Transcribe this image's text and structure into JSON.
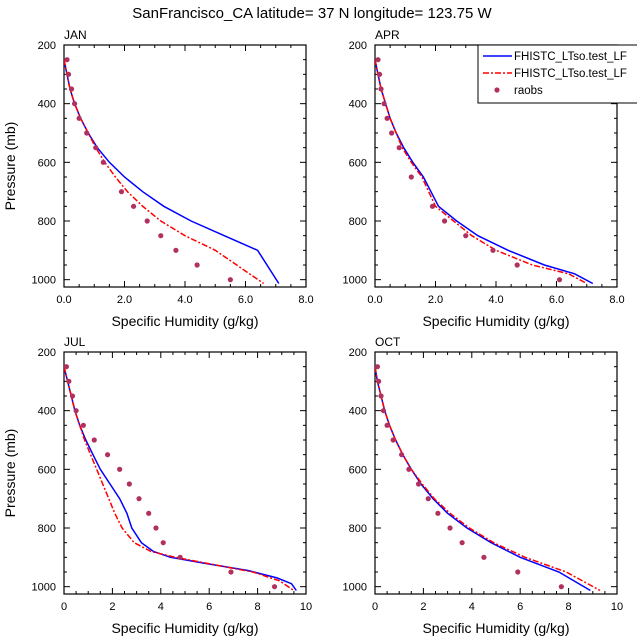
{
  "figure": {
    "title": "SanFrancisco_CA  latitude= 37 N longitude= 123.75 W"
  },
  "colors": {
    "model1": "#0000ff",
    "model2": "#ff0000",
    "obs": "#b03060",
    "axis": "#000000"
  },
  "legend": {
    "placement": "top-right of APR panel",
    "entries": [
      {
        "label": "FHISTC_LTso.test_LF",
        "style": "solid",
        "color": "#0000ff"
      },
      {
        "label": "FHISTC_LTso.test_LF",
        "style": "dashed",
        "color": "#ff0000"
      },
      {
        "label": "raobs",
        "style": "markers",
        "color": "#b03060"
      }
    ]
  },
  "chart_data": [
    {
      "type": "line",
      "panel_label": "JAN",
      "xlabel": "Specific Humidity (g/kg)",
      "ylabel": "Pressure (mb)",
      "xlim": [
        0,
        8
      ],
      "ylim": [
        1025,
        200
      ],
      "y_reversed": true,
      "xticks": [
        "0.0",
        "2.0",
        "4.0",
        "6.0",
        "8.0"
      ],
      "yticks": [
        "200",
        "400",
        "600",
        "800",
        "1000"
      ],
      "series": [
        {
          "name": "FHISTC_LTso.test_LF",
          "style": "solid",
          "x": [
            0.0,
            0.1,
            0.2,
            0.35,
            0.55,
            0.8,
            1.1,
            1.5,
            2.0,
            2.6,
            3.3,
            4.2,
            5.3,
            6.4,
            7.1
          ],
          "y": [
            250,
            300,
            350,
            400,
            450,
            500,
            550,
            600,
            650,
            700,
            750,
            800,
            850,
            900,
            1013
          ]
        },
        {
          "name": "FHISTC_LTso.test_LF",
          "style": "dashed",
          "x": [
            0.0,
            0.1,
            0.2,
            0.35,
            0.55,
            0.8,
            1.05,
            1.35,
            1.7,
            2.1,
            2.6,
            3.2,
            4.0,
            5.0,
            6.6
          ],
          "y": [
            250,
            300,
            350,
            400,
            450,
            500,
            550,
            600,
            650,
            700,
            750,
            800,
            850,
            900,
            1013
          ]
        },
        {
          "name": "raobs",
          "style": "markers",
          "x": [
            0.1,
            0.15,
            0.25,
            0.35,
            0.5,
            0.75,
            1.05,
            1.3,
            1.9,
            2.3,
            2.75,
            3.2,
            3.7,
            4.4,
            5.5
          ],
          "y": [
            250,
            300,
            350,
            400,
            450,
            500,
            550,
            600,
            700,
            750,
            800,
            850,
            900,
            950,
            1000
          ]
        }
      ]
    },
    {
      "type": "line",
      "panel_label": "APR",
      "xlabel": "Specific Humidity (g/kg)",
      "ylabel": "",
      "xlim": [
        0,
        8
      ],
      "ylim": [
        1025,
        200
      ],
      "y_reversed": true,
      "xticks": [
        "0.0",
        "2.0",
        "4.0",
        "6.0",
        "8.0"
      ],
      "yticks": [
        "200",
        "400",
        "600",
        "800",
        "1000"
      ],
      "series": [
        {
          "name": "FHISTC_LTso.test_LF",
          "style": "solid",
          "x": [
            0.0,
            0.1,
            0.2,
            0.35,
            0.5,
            0.7,
            0.95,
            1.25,
            1.6,
            2.1,
            2.7,
            3.4,
            4.4,
            5.6,
            6.6,
            7.2
          ],
          "y": [
            250,
            300,
            350,
            400,
            450,
            500,
            550,
            600,
            650,
            750,
            800,
            850,
            900,
            950,
            980,
            1013
          ]
        },
        {
          "name": "FHISTC_LTso.test_LF",
          "style": "dashed",
          "x": [
            0.0,
            0.1,
            0.2,
            0.35,
            0.5,
            0.7,
            0.9,
            1.2,
            1.55,
            2.0,
            2.6,
            3.2,
            4.0,
            5.2,
            6.4,
            7.0
          ],
          "y": [
            250,
            300,
            350,
            400,
            450,
            500,
            550,
            600,
            650,
            750,
            800,
            850,
            900,
            950,
            980,
            1013
          ]
        },
        {
          "name": "raobs",
          "style": "markers",
          "x": [
            0.1,
            0.15,
            0.2,
            0.3,
            0.4,
            0.55,
            0.8,
            1.2,
            1.9,
            2.3,
            3.0,
            3.9,
            4.7,
            6.1
          ],
          "y": [
            250,
            300,
            350,
            400,
            450,
            500,
            550,
            650,
            750,
            800,
            850,
            900,
            950,
            1000
          ]
        }
      ]
    },
    {
      "type": "line",
      "panel_label": "JUL",
      "xlabel": "Specific Humidity (g/kg)",
      "ylabel": "Pressure (mb)",
      "xlim": [
        0,
        10
      ],
      "ylim": [
        1025,
        200
      ],
      "y_reversed": true,
      "xticks": [
        "0",
        "2",
        "4",
        "6",
        "8",
        "10"
      ],
      "yticks": [
        "200",
        "400",
        "600",
        "800",
        "1000"
      ],
      "series": [
        {
          "name": "FHISTC_LTso.test_LF",
          "style": "solid",
          "x": [
            0.0,
            0.15,
            0.3,
            0.45,
            0.65,
            0.9,
            1.2,
            1.5,
            1.9,
            2.3,
            2.6,
            2.8,
            3.2,
            3.7,
            4.4,
            5.8,
            7.6,
            8.8,
            9.4,
            9.6
          ],
          "y": [
            250,
            300,
            350,
            400,
            450,
            500,
            550,
            600,
            650,
            700,
            750,
            800,
            850,
            880,
            900,
            920,
            945,
            970,
            990,
            1013
          ]
        },
        {
          "name": "FHISTC_LTso.test_LF",
          "style": "dashed",
          "x": [
            0.0,
            0.15,
            0.3,
            0.45,
            0.65,
            0.85,
            1.1,
            1.35,
            1.6,
            1.85,
            2.1,
            2.4,
            2.9,
            3.6,
            4.6,
            6.2,
            7.8,
            8.9,
            9.5
          ],
          "y": [
            250,
            300,
            350,
            400,
            450,
            500,
            550,
            600,
            650,
            700,
            750,
            800,
            850,
            880,
            900,
            925,
            950,
            980,
            1013
          ]
        },
        {
          "name": "raobs",
          "style": "markers",
          "x": [
            0.1,
            0.2,
            0.35,
            0.5,
            0.8,
            1.25,
            1.8,
            2.3,
            2.7,
            3.1,
            3.5,
            3.8,
            4.1,
            4.8,
            6.9,
            8.7
          ],
          "y": [
            250,
            300,
            350,
            400,
            450,
            500,
            550,
            600,
            650,
            700,
            750,
            800,
            850,
            900,
            950,
            1000
          ]
        }
      ]
    },
    {
      "type": "line",
      "panel_label": "OCT",
      "xlabel": "Specific Humidity (g/kg)",
      "ylabel": "",
      "xlim": [
        0,
        10
      ],
      "ylim": [
        1025,
        200
      ],
      "y_reversed": true,
      "xticks": [
        "0",
        "2",
        "4",
        "6",
        "8",
        "10"
      ],
      "yticks": [
        "200",
        "400",
        "600",
        "800",
        "1000"
      ],
      "series": [
        {
          "name": "FHISTC_LTso.test_LF",
          "style": "solid",
          "x": [
            0.0,
            0.1,
            0.25,
            0.4,
            0.6,
            0.85,
            1.15,
            1.5,
            1.9,
            2.4,
            3.0,
            3.8,
            4.8,
            6.0,
            7.6,
            8.9
          ],
          "y": [
            250,
            300,
            350,
            400,
            450,
            500,
            550,
            600,
            650,
            700,
            750,
            800,
            850,
            900,
            950,
            1013
          ]
        },
        {
          "name": "FHISTC_LTso.test_LF",
          "style": "dashed",
          "x": [
            0.0,
            0.1,
            0.25,
            0.4,
            0.6,
            0.85,
            1.15,
            1.5,
            1.95,
            2.45,
            3.1,
            3.9,
            4.9,
            6.2,
            7.9,
            9.3
          ],
          "y": [
            250,
            300,
            350,
            400,
            450,
            500,
            550,
            600,
            650,
            700,
            750,
            800,
            850,
            900,
            950,
            1013
          ]
        },
        {
          "name": "raobs",
          "style": "markers",
          "x": [
            0.1,
            0.15,
            0.25,
            0.35,
            0.5,
            0.75,
            1.1,
            1.4,
            1.8,
            2.2,
            2.6,
            3.1,
            3.6,
            4.5,
            5.9,
            7.7
          ],
          "y": [
            250,
            300,
            350,
            400,
            450,
            500,
            550,
            600,
            650,
            700,
            750,
            800,
            850,
            900,
            950,
            1000
          ]
        }
      ]
    }
  ]
}
